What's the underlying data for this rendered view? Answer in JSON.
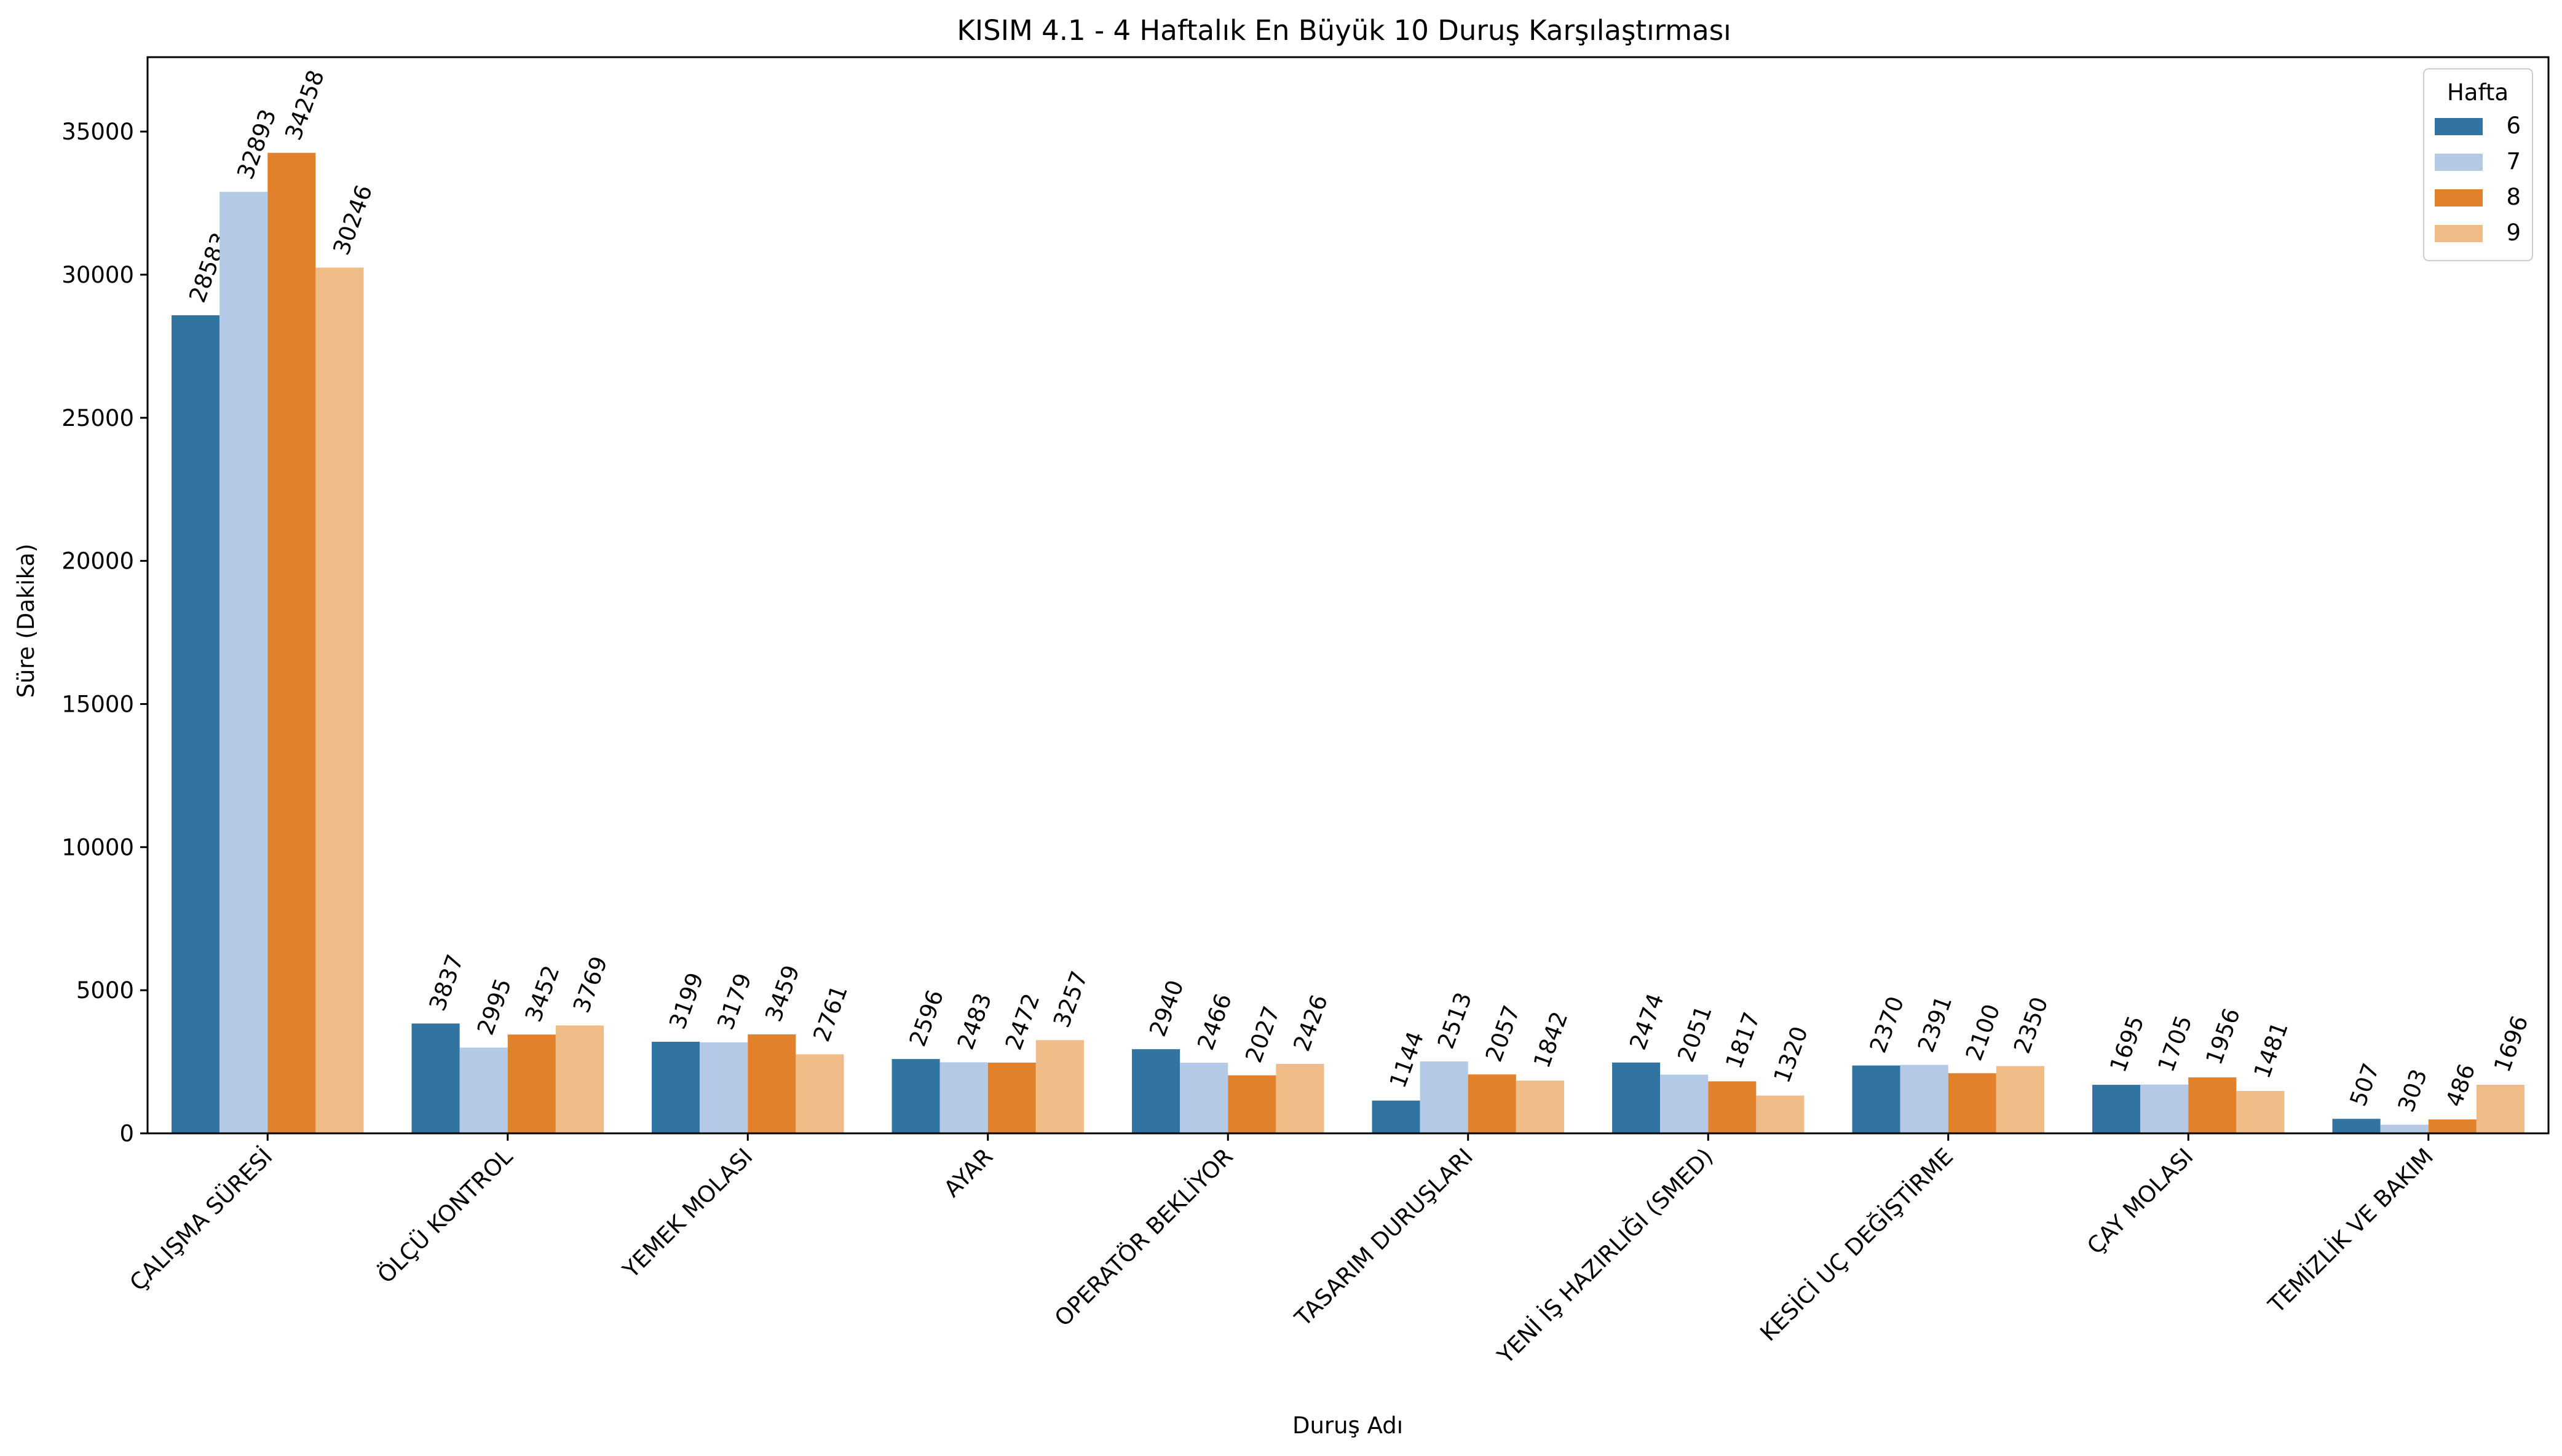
{
  "chart_data": {
    "type": "bar",
    "title": "KISIM 4.1 - 4 Haftalık En Büyük 10 Duruş Karşılaştırması",
    "xlabel": "Duruş Adı",
    "ylabel": "Süre (Dakika)",
    "ylim": [
      0,
      37600
    ],
    "yticks": [
      0,
      5000,
      10000,
      15000,
      20000,
      25000,
      30000,
      35000
    ],
    "grid": false,
    "legend": {
      "title": "Hafta",
      "placement": "top-right"
    },
    "categories": [
      "ÇALIŞMA SÜRESİ",
      "ÖLÇÜ KONTROL",
      "YEMEK MOLASI",
      "AYAR",
      "OPERATÖR BEKLİYOR",
      "TASARIM DURUŞLARI",
      "YENİ İŞ HAZIRLIĞI (SMED)",
      "KESİCİ UÇ DEĞİŞTİRME",
      "ÇAY MOLASI",
      "TEMİZLİK VE BAKIM"
    ],
    "series": [
      {
        "name": "6",
        "color": "#3274a1",
        "values": [
          28583,
          3837,
          3199,
          2596,
          2940,
          1144,
          2474,
          2370,
          1695,
          507
        ]
      },
      {
        "name": "7",
        "color": "#b3c9e6",
        "values": [
          32893,
          2995,
          3179,
          2483,
          2466,
          2513,
          2051,
          2391,
          1705,
          303
        ]
      },
      {
        "name": "8",
        "color": "#e1812c",
        "values": [
          34258,
          3452,
          3459,
          2472,
          2027,
          2057,
          1817,
          2100,
          1956,
          486
        ]
      },
      {
        "name": "9",
        "color": "#efbc88",
        "values": [
          30246,
          3769,
          2761,
          3257,
          2426,
          1842,
          1320,
          2350,
          1481,
          1696
        ]
      }
    ]
  }
}
